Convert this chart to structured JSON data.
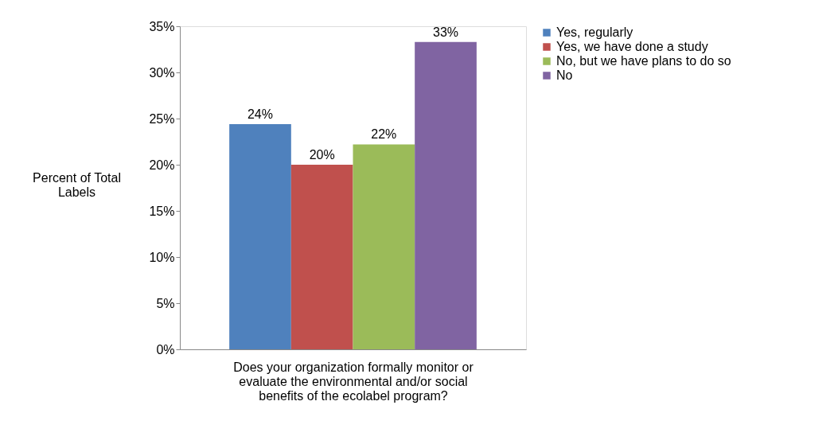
{
  "chart_data": {
    "type": "bar",
    "xlabel": "Does your organization formally monitor or evaluate the environmental and/or social benefits of the ecolabel program?",
    "ylabel": "Percent of Total Labels",
    "categories": [
      null
    ],
    "series": [
      {
        "name": "Yes, regularly",
        "color": "#4f81bd",
        "values": [
          24.4
        ],
        "value_labels": [
          "24%"
        ]
      },
      {
        "name": "Yes, we have done a study",
        "color": "#c0504d",
        "values": [
          20.0
        ],
        "value_labels": [
          "20%"
        ]
      },
      {
        "name": "No, but we have plans to do so",
        "color": "#9bbb59",
        "values": [
          22.2
        ],
        "value_labels": [
          "22%"
        ]
      },
      {
        "name": "No",
        "color": "#8064a2",
        "values": [
          33.3
        ],
        "value_labels": [
          "33%"
        ]
      }
    ],
    "ylim": [
      0,
      35
    ],
    "yticks": [
      {
        "value": 0,
        "label": "0%"
      },
      {
        "value": 5,
        "label": "5%"
      },
      {
        "value": 10,
        "label": "10%"
      },
      {
        "value": 15,
        "label": "15%"
      },
      {
        "value": 20,
        "label": "20%"
      },
      {
        "value": 25,
        "label": "25%"
      },
      {
        "value": 30,
        "label": "30%"
      },
      {
        "value": 35,
        "label": "35%"
      }
    ],
    "grid": false,
    "legend": "right"
  }
}
